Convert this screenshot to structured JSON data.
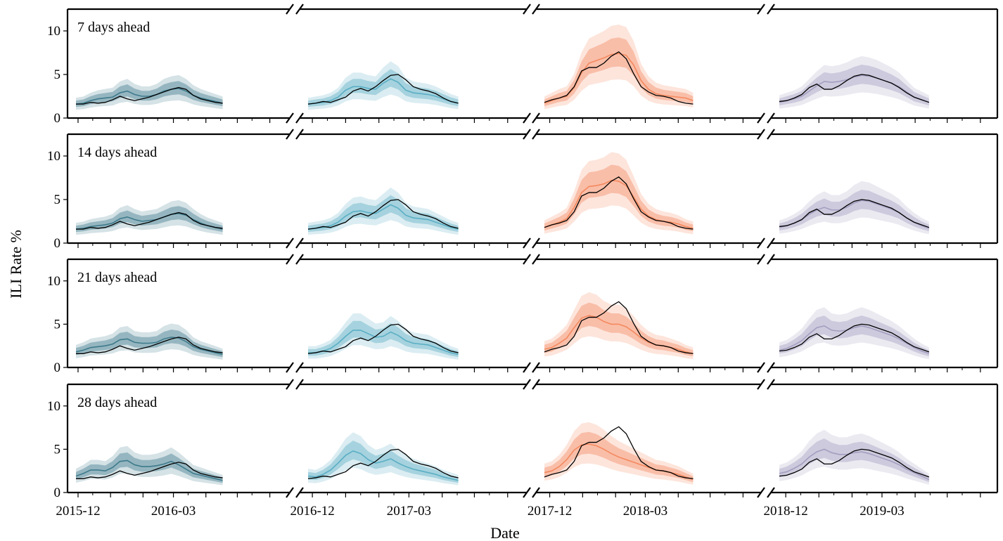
{
  "chart_data": {
    "type": "line",
    "ylabel": "ILI Rate %",
    "xlabel": "Date",
    "ylim": [
      0,
      12.5
    ],
    "yticks": [
      0,
      5,
      10
    ],
    "grid": false,
    "colors": {
      "2015-16": "#3e7a8c",
      "2016-17": "#5aaec4",
      "2017-18": "#f4895f",
      "2018-19": "#a49ec0",
      "truth": "#000000"
    },
    "seasons": [
      {
        "id": "2015-16",
        "start": "2015-11-29",
        "end": "2016-06-12",
        "tick_labels": [
          {
            "text": "2015-12",
            "date": "2015-12-01"
          },
          {
            "text": "2016-03",
            "date": "2016-03-01"
          }
        ]
      },
      {
        "id": "2016-17",
        "start": "2016-11-27",
        "end": "2017-06-11",
        "tick_labels": [
          {
            "text": "2016-12",
            "date": "2016-12-01"
          },
          {
            "text": "2017-03",
            "date": "2017-03-01"
          }
        ]
      },
      {
        "id": "2017-18",
        "start": "2017-11-26",
        "end": "2018-06-10",
        "tick_labels": [
          {
            "text": "2017-12",
            "date": "2017-12-01"
          },
          {
            "text": "2018-03",
            "date": "2018-03-01"
          }
        ]
      },
      {
        "id": "2018-19",
        "start": "2018-11-25",
        "end": "2019-06-09",
        "tick_labels": [
          {
            "text": "2018-12",
            "date": "2018-12-01"
          },
          {
            "text": "2019-03",
            "date": "2019-03-01"
          }
        ]
      }
    ],
    "truth": [
      [
        1.6,
        1.6,
        1.8,
        1.7,
        1.8,
        2.1,
        2.5,
        2.2,
        2.0,
        2.2,
        2.4,
        2.7,
        3.0,
        3.3,
        3.5,
        3.3,
        2.6,
        2.2,
        2.0,
        1.8,
        1.7
      ],
      [
        1.6,
        1.7,
        1.9,
        1.8,
        2.1,
        2.4,
        3.1,
        3.4,
        3.1,
        3.6,
        4.3,
        4.9,
        5.0,
        4.4,
        3.6,
        3.3,
        3.1,
        2.8,
        2.3,
        1.9,
        1.7
      ],
      [
        1.8,
        2.1,
        2.3,
        2.6,
        3.6,
        5.4,
        5.8,
        5.8,
        6.3,
        7.1,
        7.6,
        6.8,
        5.1,
        3.6,
        3.0,
        2.6,
        2.5,
        2.3,
        1.9,
        1.7,
        1.6
      ],
      [
        1.9,
        2.0,
        2.3,
        2.7,
        3.5,
        3.9,
        3.3,
        3.3,
        3.7,
        4.3,
        4.8,
        5.0,
        4.9,
        4.6,
        4.3,
        4.0,
        3.5,
        2.9,
        2.4,
        2.1,
        1.8
      ]
    ],
    "horizons": [
      {
        "label": "7 days ahead",
        "median": [
          [
            1.6,
            1.7,
            2.0,
            2.2,
            2.3,
            2.4,
            2.9,
            3.1,
            2.7,
            2.5,
            2.5,
            2.7,
            3.1,
            3.3,
            3.4,
            3.1,
            2.6,
            2.3,
            2.1,
            1.9,
            1.7
          ],
          [
            1.6,
            1.7,
            1.8,
            2.0,
            2.4,
            3.2,
            3.6,
            3.6,
            3.4,
            3.3,
            4.0,
            4.5,
            4.1,
            3.2,
            2.9,
            2.8,
            2.7,
            2.5,
            2.2,
            1.9,
            1.7
          ],
          [
            1.7,
            2.0,
            2.3,
            2.5,
            3.5,
            5.2,
            6.3,
            6.6,
            6.9,
            7.3,
            7.4,
            7.2,
            6.1,
            4.3,
            3.3,
            2.8,
            2.6,
            2.5,
            2.4,
            2.3,
            2.0
          ],
          [
            1.8,
            2.0,
            2.2,
            2.5,
            3.1,
            3.7,
            4.2,
            4.1,
            4.2,
            4.4,
            4.7,
            4.9,
            4.8,
            4.6,
            4.3,
            4.0,
            3.6,
            3.0,
            2.4,
            2.1,
            1.8
          ]
        ]
      },
      {
        "label": "14 days ahead",
        "median": [
          [
            1.6,
            1.7,
            1.9,
            2.0,
            2.1,
            2.3,
            2.8,
            3.0,
            2.7,
            2.5,
            2.6,
            2.7,
            3.0,
            3.3,
            3.4,
            3.2,
            2.7,
            2.3,
            2.0,
            1.8,
            1.6
          ],
          [
            1.6,
            1.7,
            1.8,
            2.0,
            2.4,
            3.1,
            3.6,
            3.7,
            3.5,
            3.4,
            3.9,
            4.4,
            4.0,
            3.2,
            2.9,
            2.8,
            2.7,
            2.4,
            2.1,
            1.8,
            1.6
          ],
          [
            1.8,
            2.1,
            2.4,
            2.8,
            4.1,
            5.8,
            6.5,
            6.6,
            6.8,
            7.2,
            7.1,
            6.6,
            5.3,
            3.9,
            3.1,
            2.7,
            2.5,
            2.4,
            2.2,
            1.9,
            1.7
          ],
          [
            1.8,
            2.0,
            2.3,
            2.7,
            3.3,
            3.8,
            4.1,
            3.8,
            3.8,
            4.1,
            4.6,
            4.9,
            4.8,
            4.5,
            4.2,
            3.9,
            3.5,
            2.9,
            2.4,
            2.0,
            1.7
          ]
        ]
      },
      {
        "label": "21 days ahead",
        "median": [
          [
            1.8,
            2.0,
            2.3,
            2.4,
            2.5,
            2.7,
            3.2,
            3.3,
            2.9,
            2.8,
            2.8,
            2.9,
            3.3,
            3.5,
            3.4,
            3.0,
            2.4,
            2.1,
            1.9,
            1.7,
            1.5
          ],
          [
            1.7,
            1.7,
            1.9,
            2.2,
            2.8,
            3.6,
            4.3,
            4.3,
            3.9,
            3.5,
            3.6,
            4.1,
            3.7,
            3.1,
            2.8,
            2.7,
            2.6,
            2.3,
            2.0,
            1.7,
            1.5
          ],
          [
            2.1,
            2.3,
            2.8,
            3.4,
            4.6,
            5.7,
            6.0,
            5.8,
            5.3,
            5.0,
            5.0,
            4.7,
            4.1,
            3.4,
            2.9,
            2.6,
            2.5,
            2.3,
            2.1,
            1.8,
            1.6
          ],
          [
            2.0,
            2.2,
            2.6,
            3.1,
            3.9,
            4.6,
            4.8,
            4.3,
            4.2,
            4.3,
            4.6,
            4.8,
            4.6,
            4.3,
            4.0,
            3.7,
            3.3,
            2.8,
            2.3,
            1.9,
            1.6
          ]
        ]
      },
      {
        "label": "28 days ahead",
        "median": [
          [
            1.9,
            2.2,
            2.6,
            2.6,
            2.5,
            2.9,
            3.6,
            3.7,
            3.2,
            3.0,
            3.0,
            3.1,
            3.3,
            3.6,
            3.2,
            2.7,
            2.2,
            2.0,
            1.8,
            1.6,
            1.4
          ],
          [
            1.9,
            1.8,
            2.1,
            2.6,
            3.4,
            4.3,
            4.8,
            4.5,
            3.8,
            3.4,
            3.6,
            3.9,
            3.4,
            3.0,
            2.7,
            2.5,
            2.3,
            2.1,
            1.8,
            1.6,
            1.4
          ],
          [
            2.3,
            2.5,
            3.0,
            3.8,
            4.9,
            5.5,
            5.6,
            5.4,
            5.0,
            4.5,
            4.1,
            3.8,
            3.5,
            3.2,
            2.9,
            2.6,
            2.5,
            2.3,
            2.1,
            1.8,
            1.5
          ],
          [
            2.2,
            2.4,
            2.8,
            3.3,
            4.1,
            4.7,
            5.0,
            4.6,
            4.4,
            4.4,
            4.6,
            4.7,
            4.5,
            4.2,
            3.9,
            3.6,
            3.2,
            2.7,
            2.3,
            1.9,
            1.5
          ]
        ]
      }
    ]
  }
}
